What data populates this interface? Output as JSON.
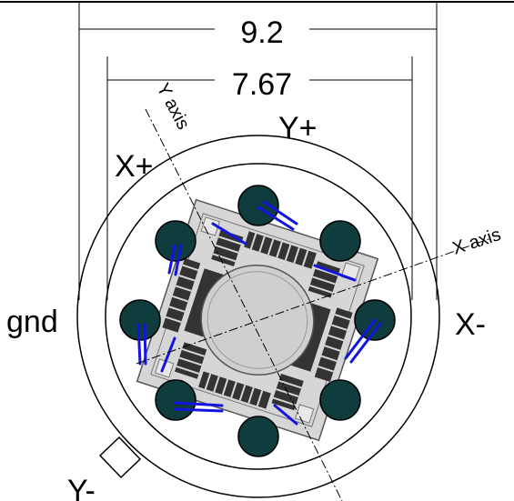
{
  "dimensions": {
    "outer": "9.2",
    "inner": "7.67"
  },
  "labels": {
    "x_plus": "X+",
    "x_minus": "X-",
    "y_plus": "Y+",
    "y_minus": "Y-",
    "gnd": "gnd",
    "x_axis": "X axis",
    "y_axis": "Y axis"
  },
  "colors": {
    "pin_fill": "#0f3d3d",
    "bond_wire": "#1414e0",
    "chip_fill": "#d9d9d9",
    "line": "#000000"
  }
}
